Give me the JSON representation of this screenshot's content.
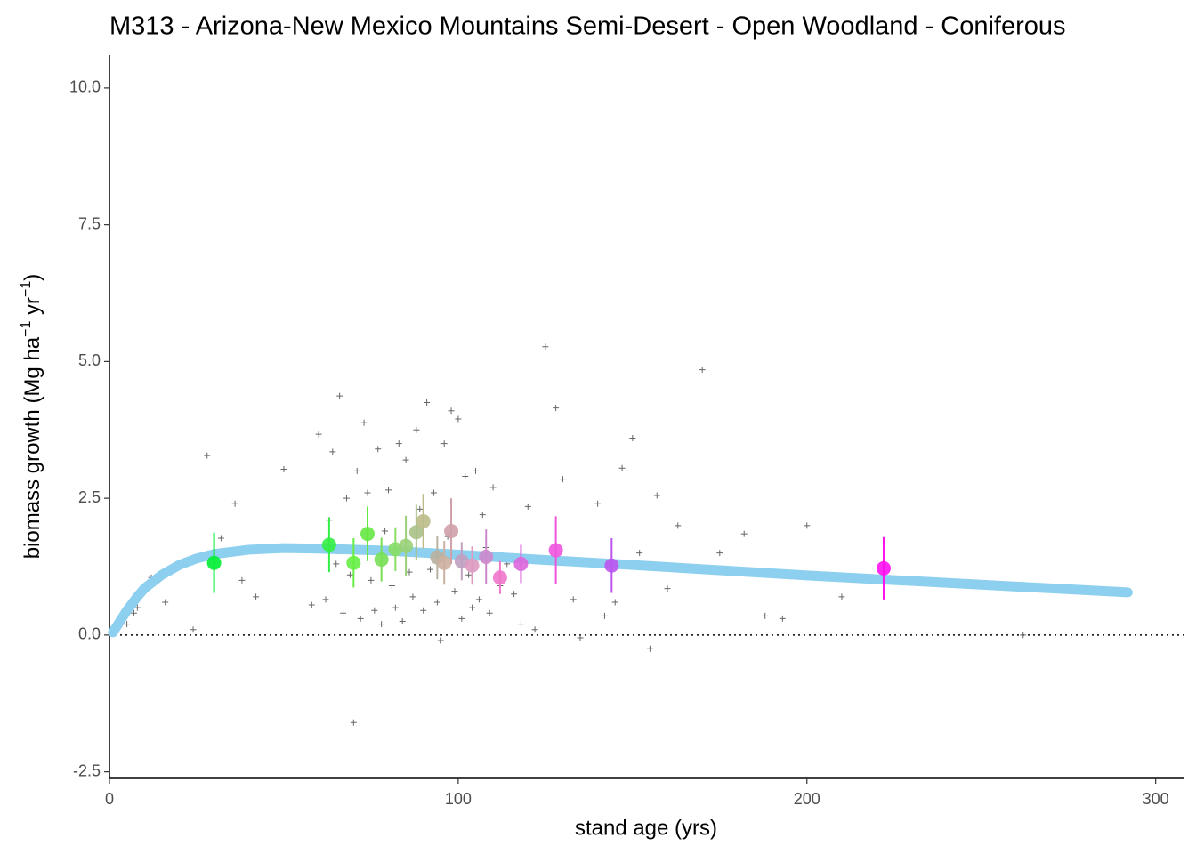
{
  "chart_data": {
    "type": "scatter",
    "title": "M313 - Arizona-New Mexico Mountains Semi-Desert - Open Woodland - Coniferous",
    "xlabel": "stand age (yrs)",
    "ylabel_parts": [
      "biomass growth (Mg ha",
      "−1",
      " yr",
      "−1",
      ")"
    ],
    "xlim": [
      0,
      308
    ],
    "ylim": [
      -2.62,
      10.6
    ],
    "xticks": [
      0,
      100,
      200,
      300
    ],
    "yticks": [
      {
        "value": 10,
        "label": "10.0"
      },
      7.5,
      {
        "value": 5,
        "label": "5.0"
      },
      2.5,
      {
        "value": 0,
        "label": "0.0"
      },
      -2.5
    ],
    "hline": 0,
    "series": [
      {
        "type": "scatter",
        "marker": "plus",
        "color": "#666666",
        "x": [
          2,
          5,
          7,
          8,
          12,
          16,
          24,
          28,
          32,
          36,
          38,
          42,
          50,
          58,
          60,
          62,
          63,
          64,
          65,
          66,
          67,
          68,
          69,
          70,
          71,
          72,
          73,
          74,
          75,
          76,
          77,
          78,
          79,
          80,
          81,
          82,
          83,
          84,
          85,
          86,
          87,
          88,
          89,
          90,
          91,
          92,
          93,
          94,
          95,
          96,
          97,
          98,
          99,
          100,
          101,
          102,
          103,
          104,
          105,
          106,
          107,
          108,
          109,
          110,
          112,
          114,
          116,
          118,
          120,
          122,
          125,
          128,
          130,
          133,
          135,
          138,
          140,
          142,
          145,
          147,
          150,
          152,
          155,
          157,
          160,
          163,
          170,
          175,
          182,
          188,
          193,
          200,
          210,
          262,
          292
        ],
        "values": [
          0.05,
          0.2,
          0.4,
          0.5,
          1.05,
          0.6,
          0.1,
          3.28,
          1.77,
          2.4,
          1.0,
          0.7,
          3.03,
          0.55,
          3.67,
          0.65,
          2.1,
          3.35,
          1.3,
          4.37,
          0.4,
          2.5,
          1.1,
          -1.6,
          3.0,
          0.3,
          3.88,
          2.6,
          1.0,
          0.45,
          3.4,
          0.2,
          1.9,
          2.65,
          0.9,
          0.5,
          3.5,
          0.25,
          3.2,
          1.15,
          0.7,
          3.75,
          2.3,
          0.45,
          4.25,
          1.2,
          2.6,
          0.6,
          -0.1,
          3.5,
          1.8,
          4.1,
          0.8,
          3.95,
          0.3,
          2.9,
          1.1,
          0.5,
          3.0,
          0.65,
          2.2,
          1.6,
          0.4,
          2.7,
          0.9,
          1.3,
          0.75,
          0.2,
          2.35,
          0.1,
          5.27,
          4.15,
          2.85,
          0.65,
          -0.05,
          1.3,
          2.4,
          0.35,
          0.6,
          3.05,
          3.6,
          1.5,
          -0.25,
          2.55,
          0.85,
          2.0,
          4.85,
          1.5,
          1.85,
          0.35,
          0.3,
          2.0,
          0.7,
          0.0,
          0.8
        ]
      },
      {
        "type": "line",
        "color": "#8ccfee",
        "x": [
          1,
          3,
          5,
          8,
          10,
          15,
          20,
          25,
          30,
          40,
          50,
          60,
          80,
          100,
          120,
          150,
          200,
          250,
          292
        ],
        "values": [
          0.05,
          0.25,
          0.45,
          0.7,
          0.85,
          1.1,
          1.28,
          1.4,
          1.48,
          1.56,
          1.59,
          1.58,
          1.54,
          1.47,
          1.39,
          1.28,
          1.09,
          0.92,
          0.78
        ]
      },
      {
        "type": "errorbar",
        "x": [
          30,
          63,
          70,
          74,
          78,
          82,
          85,
          88,
          90,
          94,
          96,
          98,
          101,
          104,
          108,
          112,
          118,
          128,
          144,
          222
        ],
        "values": [
          1.32,
          1.65,
          1.32,
          1.85,
          1.38,
          1.57,
          1.63,
          1.88,
          2.08,
          1.42,
          1.32,
          1.9,
          1.35,
          1.27,
          1.43,
          1.05,
          1.3,
          1.55,
          1.27,
          1.22
        ],
        "errors": [
          0.55,
          0.5,
          0.45,
          0.5,
          0.4,
          0.4,
          0.55,
          0.5,
          0.5,
          0.4,
          0.4,
          0.6,
          0.35,
          0.35,
          0.5,
          0.3,
          0.35,
          0.62,
          0.5,
          0.57
        ],
        "colors": [
          "#00ee33",
          "#33ee44",
          "#66ee44",
          "#66e844",
          "#77e055",
          "#88dd66",
          "#99d077",
          "#aac088",
          "#bbbb88",
          "#b8b0a0",
          "#ccb0a0",
          "#d0a0a8",
          "#c0a0c0",
          "#dd99c0",
          "#cc88cc",
          "#ee77cc",
          "#dd66dd",
          "#ee55dd",
          "#bb55ee",
          "#ff11ee"
        ]
      }
    ]
  }
}
